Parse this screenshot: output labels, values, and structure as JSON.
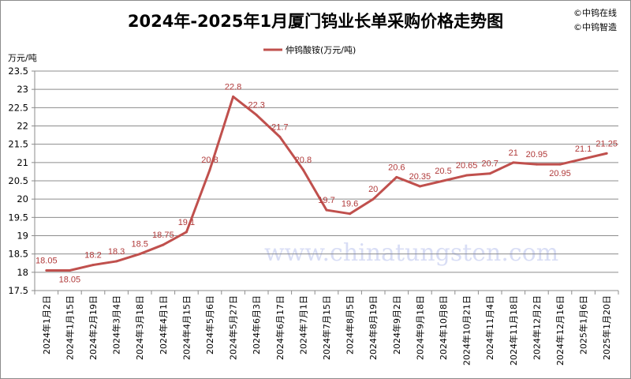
{
  "chart_data": {
    "type": "line",
    "title": "2024年-2025年1月厦门钨业长单采购价格走势图",
    "ylabel": "万元/吨",
    "xlabel": "",
    "ylim": [
      17.5,
      23.5
    ],
    "yticks": [
      "17.5",
      "18",
      "18.5",
      "19",
      "19.5",
      "20",
      "20.5",
      "21",
      "21.5",
      "22",
      "22.5",
      "23",
      "23.5"
    ],
    "grid": true,
    "legend_position": "top",
    "categories": [
      "2024年1月2日",
      "2024年1月15日",
      "2024年2月19日",
      "2024年3月4日",
      "2024年3月18日",
      "2024年4月1日",
      "2024年4月15日",
      "2024年5月6日",
      "2024年5月27日",
      "2024年6月3日",
      "2024年6月17日",
      "2024年7月1日",
      "2024年7月15日",
      "2024年8月5日",
      "2024年8月19日",
      "2024年9月2日",
      "2024年9月18日",
      "2024年10月8日",
      "2024年10月21日",
      "2024年11月4日",
      "2024年11月18日",
      "2024年12月2日",
      "2024年12月16日",
      "2025年1月6日",
      "2025年1月20日"
    ],
    "series": [
      {
        "name": "仲钨酸铵(万元/吨)",
        "color": "#c0504d",
        "values": [
          18.05,
          18.05,
          18.2,
          18.3,
          18.5,
          18.75,
          19.1,
          20.8,
          22.8,
          22.3,
          21.7,
          20.8,
          19.7,
          19.6,
          20,
          20.6,
          20.35,
          20.5,
          20.65,
          20.7,
          21,
          20.95,
          20.95,
          21.1,
          21.25
        ]
      }
    ]
  },
  "credits": [
    "©中钨在线",
    "©中钨智造"
  ],
  "watermark": "www.chinatungsten.com"
}
